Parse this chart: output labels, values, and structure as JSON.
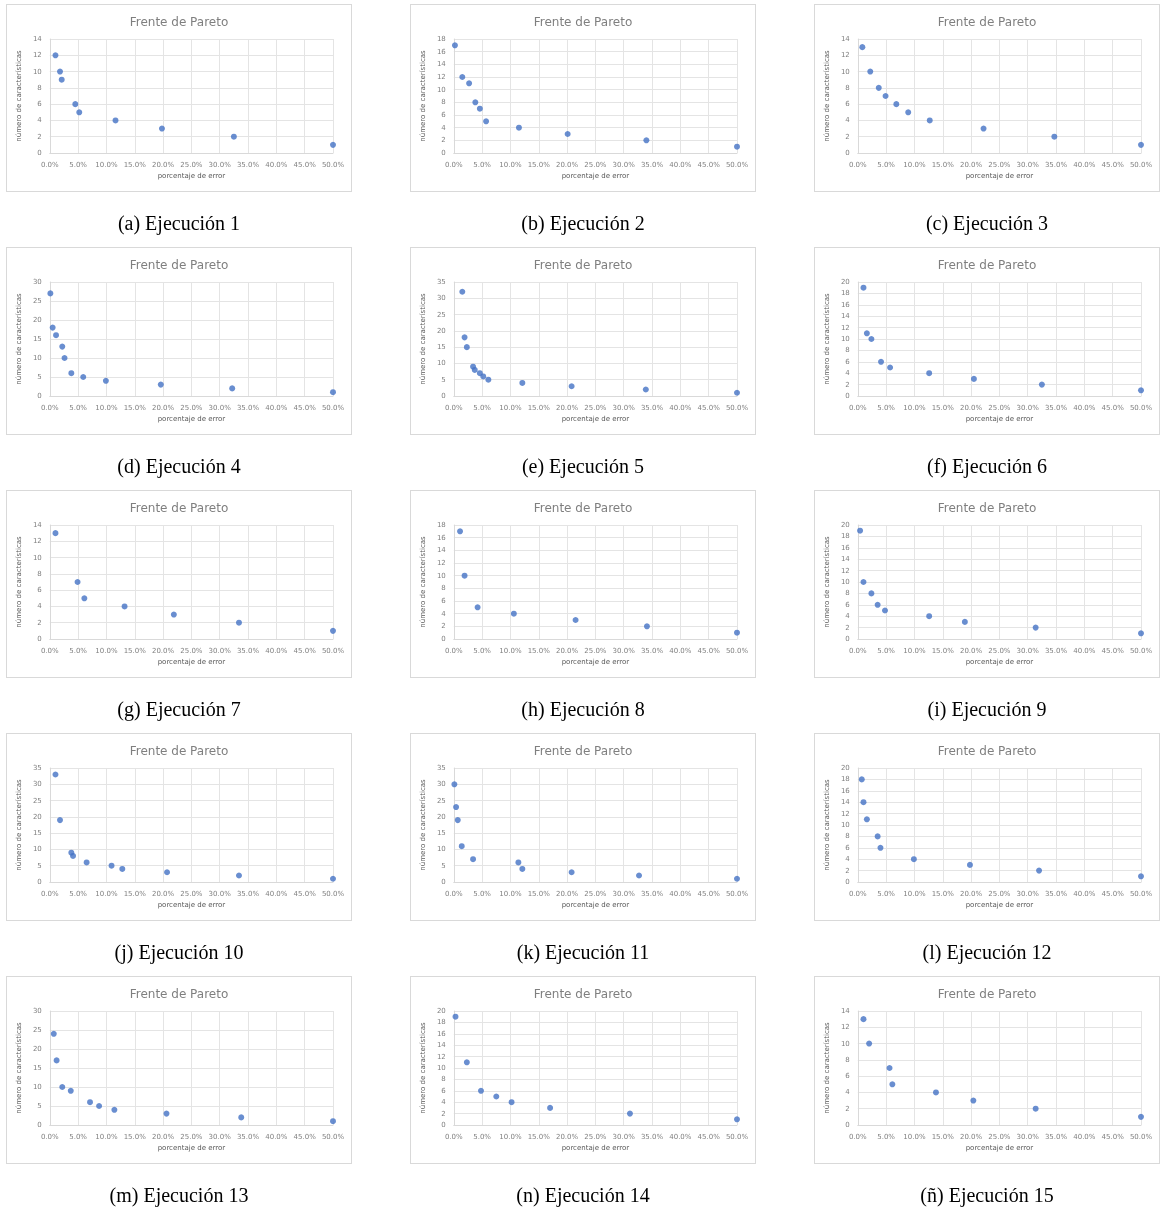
{
  "chart_data": [
    {
      "type": "scatter",
      "title": "Frente de Pareto",
      "xlabel": "porcentaje de error",
      "ylabel": "número de características",
      "annotations": [
        "(a) Ejecución 1"
      ],
      "marker": "circle",
      "grid": true,
      "x": [
        1.0,
        1.8,
        2.1,
        4.5,
        5.2,
        11.6,
        19.8,
        32.5,
        50
      ],
      "series": [
        {
          "color": "#4472c4",
          "values": [
            12,
            10,
            9,
            6,
            5,
            4,
            3,
            2,
            1
          ]
        }
      ],
      "xlim": [
        0,
        50
      ],
      "xticks": [
        {
          "value": 0,
          "label": "0.0%"
        },
        {
          "value": 5,
          "label": "5.0%"
        },
        {
          "value": 10,
          "label": "10.0%"
        },
        {
          "value": 15,
          "label": "15.0%"
        },
        {
          "value": 20,
          "label": "20.0%"
        },
        {
          "value": 25,
          "label": "25.0%"
        },
        {
          "value": 30,
          "label": "30.0%"
        },
        {
          "value": 35,
          "label": "35.0%"
        },
        {
          "value": 40,
          "label": "40.0%"
        },
        {
          "value": 45,
          "label": "45.0%"
        },
        {
          "value": 50,
          "label": "50.0%"
        }
      ],
      "ylim": [
        0,
        14
      ],
      "yticks": [
        0,
        2,
        4,
        6,
        8,
        10,
        12,
        14
      ]
    },
    {
      "type": "scatter",
      "title": "Frente de Pareto",
      "xlabel": "porcentaje de error",
      "ylabel": "número de características",
      "annotations": [
        "(b) Ejecución 2"
      ],
      "marker": "circle",
      "grid": true,
      "x": [
        0.2,
        1.5,
        2.7,
        3.8,
        4.6,
        5.7,
        11.5,
        20.1,
        34.0,
        50
      ],
      "series": [
        {
          "color": "#4472c4",
          "values": [
            17,
            12,
            11,
            8,
            7,
            5,
            4,
            3,
            2,
            1
          ]
        }
      ],
      "xlim": [
        0,
        50
      ],
      "xticks": [
        {
          "value": 0,
          "label": "0.0%"
        },
        {
          "value": 5,
          "label": "5.0%"
        },
        {
          "value": 10,
          "label": "10.0%"
        },
        {
          "value": 15,
          "label": "15.0%"
        },
        {
          "value": 20,
          "label": "20.0%"
        },
        {
          "value": 25,
          "label": "25.0%"
        },
        {
          "value": 30,
          "label": "30.0%"
        },
        {
          "value": 35,
          "label": "35.0%"
        },
        {
          "value": 40,
          "label": "40.0%"
        },
        {
          "value": 45,
          "label": "45.0%"
        },
        {
          "value": 50,
          "label": "50.0%"
        }
      ],
      "ylim": [
        0,
        18
      ],
      "yticks": [
        0,
        2,
        4,
        6,
        8,
        10,
        12,
        14,
        16,
        18
      ]
    },
    {
      "type": "scatter",
      "title": "Frente de Pareto",
      "xlabel": "porcentaje de error",
      "ylabel": "número de características",
      "annotations": [
        "(c) Ejecución 3"
      ],
      "marker": "circle",
      "grid": true,
      "x": [
        0.8,
        2.2,
        3.7,
        4.9,
        6.8,
        8.9,
        12.7,
        22.2,
        34.7,
        50
      ],
      "series": [
        {
          "color": "#4472c4",
          "values": [
            13,
            10,
            8,
            7,
            6,
            5,
            4,
            3,
            2,
            1
          ]
        }
      ],
      "xlim": [
        0,
        50
      ],
      "xticks": [
        {
          "value": 0,
          "label": "0.0%"
        },
        {
          "value": 5,
          "label": "5.0%"
        },
        {
          "value": 10,
          "label": "10.0%"
        },
        {
          "value": 15,
          "label": "15.0%"
        },
        {
          "value": 20,
          "label": "20.0%"
        },
        {
          "value": 25,
          "label": "25.0%"
        },
        {
          "value": 30,
          "label": "30.0%"
        },
        {
          "value": 35,
          "label": "35.0%"
        },
        {
          "value": 40,
          "label": "40.0%"
        },
        {
          "value": 45,
          "label": "45.0%"
        },
        {
          "value": 50,
          "label": "50.0%"
        }
      ],
      "ylim": [
        0,
        14
      ],
      "yticks": [
        0,
        2,
        4,
        6,
        8,
        10,
        12,
        14
      ]
    },
    {
      "type": "scatter",
      "title": "Frente de Pareto",
      "xlabel": "porcentaje de error",
      "ylabel": "número de características",
      "annotations": [
        "(d) Ejecución 4"
      ],
      "marker": "circle",
      "grid": true,
      "x": [
        0.1,
        0.5,
        1.1,
        2.2,
        2.6,
        3.8,
        5.9,
        9.9,
        19.6,
        32.2,
        50
      ],
      "series": [
        {
          "color": "#4472c4",
          "values": [
            27,
            18,
            16,
            13,
            10,
            6,
            5,
            4,
            3,
            2,
            1
          ]
        }
      ],
      "xlim": [
        0,
        50
      ],
      "xticks": [
        {
          "value": 0,
          "label": "0.0%"
        },
        {
          "value": 5,
          "label": "5.0%"
        },
        {
          "value": 10,
          "label": "10.0%"
        },
        {
          "value": 15,
          "label": "15.0%"
        },
        {
          "value": 20,
          "label": "20.0%"
        },
        {
          "value": 25,
          "label": "25.0%"
        },
        {
          "value": 30,
          "label": "30.0%"
        },
        {
          "value": 35,
          "label": "35.0%"
        },
        {
          "value": 40,
          "label": "40.0%"
        },
        {
          "value": 45,
          "label": "45.0%"
        },
        {
          "value": 50,
          "label": "50.0%"
        }
      ],
      "ylim": [
        0,
        30
      ],
      "yticks": [
        0,
        5,
        10,
        15,
        20,
        25,
        30
      ]
    },
    {
      "type": "scatter",
      "title": "Frente de Pareto",
      "xlabel": "porcentaje de error",
      "ylabel": "número de características",
      "annotations": [
        "(e) Ejecución 5"
      ],
      "marker": "circle",
      "grid": true,
      "x": [
        1.5,
        1.9,
        2.3,
        3.4,
        3.7,
        4.6,
        5.2,
        6.1,
        12.1,
        20.8,
        33.9,
        50
      ],
      "series": [
        {
          "color": "#4472c4",
          "values": [
            32,
            18,
            15,
            9,
            8,
            7,
            6,
            5,
            4,
            3,
            2,
            1
          ]
        }
      ],
      "xlim": [
        0,
        50
      ],
      "xticks": [
        {
          "value": 0,
          "label": "0.0%"
        },
        {
          "value": 5,
          "label": "5.0%"
        },
        {
          "value": 10,
          "label": "10.0%"
        },
        {
          "value": 15,
          "label": "15.0%"
        },
        {
          "value": 20,
          "label": "20.0%"
        },
        {
          "value": 25,
          "label": "25.0%"
        },
        {
          "value": 30,
          "label": "30.0%"
        },
        {
          "value": 35,
          "label": "35.0%"
        },
        {
          "value": 40,
          "label": "40.0%"
        },
        {
          "value": 45,
          "label": "45.0%"
        },
        {
          "value": 50,
          "label": "50.0%"
        }
      ],
      "ylim": [
        0,
        35
      ],
      "yticks": [
        0,
        5,
        10,
        15,
        20,
        25,
        30,
        35
      ]
    },
    {
      "type": "scatter",
      "title": "Frente de Pareto",
      "xlabel": "porcentaje de error",
      "ylabel": "número de características",
      "annotations": [
        "(f) Ejecución 6"
      ],
      "marker": "circle",
      "grid": true,
      "x": [
        1.0,
        1.6,
        2.4,
        4.1,
        5.7,
        12.6,
        20.5,
        32.5,
        50
      ],
      "series": [
        {
          "color": "#4472c4",
          "values": [
            19,
            11,
            10,
            6,
            5,
            4,
            3,
            2,
            1
          ]
        }
      ],
      "xlim": [
        0,
        50
      ],
      "xticks": [
        {
          "value": 0,
          "label": "0.0%"
        },
        {
          "value": 5,
          "label": "5.0%"
        },
        {
          "value": 10,
          "label": "10.0%"
        },
        {
          "value": 15,
          "label": "15.0%"
        },
        {
          "value": 20,
          "label": "20.0%"
        },
        {
          "value": 25,
          "label": "25.0%"
        },
        {
          "value": 30,
          "label": "30.0%"
        },
        {
          "value": 35,
          "label": "35.0%"
        },
        {
          "value": 40,
          "label": "40.0%"
        },
        {
          "value": 45,
          "label": "45.0%"
        },
        {
          "value": 50,
          "label": "50.0%"
        }
      ],
      "ylim": [
        0,
        20
      ],
      "yticks": [
        0,
        2,
        4,
        6,
        8,
        10,
        12,
        14,
        16,
        18,
        20
      ]
    },
    {
      "type": "scatter",
      "title": "Frente de Pareto",
      "xlabel": "porcentaje de error",
      "ylabel": "número de características",
      "annotations": [
        "(g) Ejecución 7"
      ],
      "marker": "circle",
      "grid": true,
      "x": [
        1.0,
        4.9,
        6.1,
        13.2,
        21.9,
        33.4,
        50
      ],
      "series": [
        {
          "color": "#4472c4",
          "values": [
            13,
            7,
            5,
            4,
            3,
            2,
            1
          ]
        }
      ],
      "xlim": [
        0,
        50
      ],
      "xticks": [
        {
          "value": 0,
          "label": "0.0%"
        },
        {
          "value": 5,
          "label": "5.0%"
        },
        {
          "value": 10,
          "label": "10.0%"
        },
        {
          "value": 15,
          "label": "15.0%"
        },
        {
          "value": 20,
          "label": "20.0%"
        },
        {
          "value": 25,
          "label": "25.0%"
        },
        {
          "value": 30,
          "label": "30.0%"
        },
        {
          "value": 35,
          "label": "35.0%"
        },
        {
          "value": 40,
          "label": "40.0%"
        },
        {
          "value": 45,
          "label": "45.0%"
        },
        {
          "value": 50,
          "label": "50.0%"
        }
      ],
      "ylim": [
        0,
        14
      ],
      "yticks": [
        0,
        2,
        4,
        6,
        8,
        10,
        12,
        14
      ]
    },
    {
      "type": "scatter",
      "title": "Frente de Pareto",
      "xlabel": "porcentaje de error",
      "ylabel": "número de características",
      "annotations": [
        "(h) Ejecución 8"
      ],
      "marker": "circle",
      "grid": true,
      "x": [
        1.1,
        1.9,
        4.2,
        10.6,
        21.5,
        34.1,
        50
      ],
      "series": [
        {
          "color": "#4472c4",
          "values": [
            17,
            10,
            5,
            4,
            3,
            2,
            1
          ]
        }
      ],
      "xlim": [
        0,
        50
      ],
      "xticks": [
        {
          "value": 0,
          "label": "0.0%"
        },
        {
          "value": 5,
          "label": "5.0%"
        },
        {
          "value": 10,
          "label": "10.0%"
        },
        {
          "value": 15,
          "label": "15.0%"
        },
        {
          "value": 20,
          "label": "20.0%"
        },
        {
          "value": 25,
          "label": "25.0%"
        },
        {
          "value": 30,
          "label": "30.0%"
        },
        {
          "value": 35,
          "label": "35.0%"
        },
        {
          "value": 40,
          "label": "40.0%"
        },
        {
          "value": 45,
          "label": "45.0%"
        },
        {
          "value": 50,
          "label": "50.0%"
        }
      ],
      "ylim": [
        0,
        18
      ],
      "yticks": [
        0,
        2,
        4,
        6,
        8,
        10,
        12,
        14,
        16,
        18
      ]
    },
    {
      "type": "scatter",
      "title": "Frente de Pareto",
      "xlabel": "porcentaje de error",
      "ylabel": "número de características",
      "annotations": [
        "(i) Ejecución 9"
      ],
      "marker": "circle",
      "grid": true,
      "x": [
        0.4,
        1.0,
        2.4,
        3.5,
        4.8,
        12.6,
        18.9,
        31.4,
        50
      ],
      "series": [
        {
          "color": "#4472c4",
          "values": [
            19,
            10,
            8,
            6,
            5,
            4,
            3,
            2,
            1
          ]
        }
      ],
      "xlim": [
        0,
        50
      ],
      "xticks": [
        {
          "value": 0,
          "label": "0.0%"
        },
        {
          "value": 5,
          "label": "5.0%"
        },
        {
          "value": 10,
          "label": "10.0%"
        },
        {
          "value": 15,
          "label": "15.0%"
        },
        {
          "value": 20,
          "label": "20.0%"
        },
        {
          "value": 25,
          "label": "25.0%"
        },
        {
          "value": 30,
          "label": "30.0%"
        },
        {
          "value": 35,
          "label": "35.0%"
        },
        {
          "value": 40,
          "label": "40.0%"
        },
        {
          "value": 45,
          "label": "45.0%"
        },
        {
          "value": 50,
          "label": "50.0%"
        }
      ],
      "ylim": [
        0,
        20
      ],
      "yticks": [
        0,
        2,
        4,
        6,
        8,
        10,
        12,
        14,
        16,
        18,
        20
      ]
    },
    {
      "type": "scatter",
      "title": "Frente de Pareto",
      "xlabel": "porcentaje de error",
      "ylabel": "número de características",
      "annotations": [
        "(j) Ejecución 10"
      ],
      "marker": "circle",
      "grid": true,
      "x": [
        1.0,
        1.8,
        3.8,
        4.1,
        6.5,
        10.9,
        12.8,
        20.7,
        33.4,
        50
      ],
      "series": [
        {
          "color": "#4472c4",
          "values": [
            33,
            19,
            9,
            8,
            6,
            5,
            4,
            3,
            2,
            1
          ]
        }
      ],
      "xlim": [
        0,
        50
      ],
      "xticks": [
        {
          "value": 0,
          "label": "0.0%"
        },
        {
          "value": 5,
          "label": "5.0%"
        },
        {
          "value": 10,
          "label": "10.0%"
        },
        {
          "value": 15,
          "label": "15.0%"
        },
        {
          "value": 20,
          "label": "20.0%"
        },
        {
          "value": 25,
          "label": "25.0%"
        },
        {
          "value": 30,
          "label": "30.0%"
        },
        {
          "value": 35,
          "label": "35.0%"
        },
        {
          "value": 40,
          "label": "40.0%"
        },
        {
          "value": 45,
          "label": "45.0%"
        },
        {
          "value": 50,
          "label": "50.0%"
        }
      ],
      "ylim": [
        0,
        35
      ],
      "yticks": [
        0,
        5,
        10,
        15,
        20,
        25,
        30,
        35
      ]
    },
    {
      "type": "scatter",
      "title": "Frente de Pareto",
      "xlabel": "porcentaje de error",
      "ylabel": "número de características",
      "annotations": [
        "(k) Ejecución 11"
      ],
      "marker": "circle",
      "grid": true,
      "x": [
        0.1,
        0.4,
        0.7,
        1.4,
        3.4,
        11.4,
        12.1,
        20.8,
        32.7,
        50
      ],
      "series": [
        {
          "color": "#4472c4",
          "values": [
            30,
            23,
            19,
            11,
            7,
            6,
            4,
            3,
            2,
            1
          ]
        }
      ],
      "xlim": [
        0,
        50
      ],
      "xticks": [
        {
          "value": 0,
          "label": "0.0%"
        },
        {
          "value": 5,
          "label": "5.0%"
        },
        {
          "value": 10,
          "label": "10.0%"
        },
        {
          "value": 15,
          "label": "15.0%"
        },
        {
          "value": 20,
          "label": "20.0%"
        },
        {
          "value": 25,
          "label": "25.0%"
        },
        {
          "value": 30,
          "label": "30.0%"
        },
        {
          "value": 35,
          "label": "35.0%"
        },
        {
          "value": 40,
          "label": "40.0%"
        },
        {
          "value": 45,
          "label": "45.0%"
        },
        {
          "value": 50,
          "label": "50.0%"
        }
      ],
      "ylim": [
        0,
        35
      ],
      "yticks": [
        0,
        5,
        10,
        15,
        20,
        25,
        30,
        35
      ]
    },
    {
      "type": "scatter",
      "title": "Frente de Pareto",
      "xlabel": "porcentaje de error",
      "ylabel": "número de características",
      "annotations": [
        "(l) Ejecución 12"
      ],
      "marker": "circle",
      "grid": true,
      "x": [
        0.7,
        1.0,
        1.6,
        3.5,
        4.0,
        9.9,
        19.8,
        32.0,
        50
      ],
      "series": [
        {
          "color": "#4472c4",
          "values": [
            18,
            14,
            11,
            8,
            6,
            4,
            3,
            2,
            1
          ]
        }
      ],
      "xlim": [
        0,
        50
      ],
      "xticks": [
        {
          "value": 0,
          "label": "0.0%"
        },
        {
          "value": 5,
          "label": "5.0%"
        },
        {
          "value": 10,
          "label": "10.0%"
        },
        {
          "value": 15,
          "label": "15.0%"
        },
        {
          "value": 20,
          "label": "20.0%"
        },
        {
          "value": 25,
          "label": "25.0%"
        },
        {
          "value": 30,
          "label": "30.0%"
        },
        {
          "value": 35,
          "label": "35.0%"
        },
        {
          "value": 40,
          "label": "40.0%"
        },
        {
          "value": 45,
          "label": "45.0%"
        },
        {
          "value": 50,
          "label": "50.0%"
        }
      ],
      "ylim": [
        0,
        20
      ],
      "yticks": [
        0,
        2,
        4,
        6,
        8,
        10,
        12,
        14,
        16,
        18,
        20
      ]
    },
    {
      "type": "scatter",
      "title": "Frente de Pareto",
      "xlabel": "porcentaje de error",
      "ylabel": "número de características",
      "annotations": [
        "(m) Ejecución 13"
      ],
      "marker": "circle",
      "grid": true,
      "x": [
        0.7,
        1.2,
        2.2,
        3.7,
        7.1,
        8.7,
        11.4,
        20.6,
        33.8,
        50
      ],
      "series": [
        {
          "color": "#4472c4",
          "values": [
            24,
            17,
            10,
            9,
            6,
            5,
            4,
            3,
            2,
            1
          ]
        }
      ],
      "xlim": [
        0,
        50
      ],
      "xticks": [
        {
          "value": 0,
          "label": "0.0%"
        },
        {
          "value": 5,
          "label": "5.0%"
        },
        {
          "value": 10,
          "label": "10.0%"
        },
        {
          "value": 15,
          "label": "15.0%"
        },
        {
          "value": 20,
          "label": "20.0%"
        },
        {
          "value": 25,
          "label": "25.0%"
        },
        {
          "value": 30,
          "label": "30.0%"
        },
        {
          "value": 35,
          "label": "35.0%"
        },
        {
          "value": 40,
          "label": "40.0%"
        },
        {
          "value": 45,
          "label": "45.0%"
        },
        {
          "value": 50,
          "label": "50.0%"
        }
      ],
      "ylim": [
        0,
        30
      ],
      "yticks": [
        0,
        5,
        10,
        15,
        20,
        25,
        30
      ]
    },
    {
      "type": "scatter",
      "title": "Frente de Pareto",
      "xlabel": "porcentaje de error",
      "ylabel": "número de características",
      "annotations": [
        "(n) Ejecución 14"
      ],
      "marker": "circle",
      "grid": true,
      "x": [
        0.3,
        2.3,
        4.8,
        7.5,
        10.2,
        17.0,
        31.1,
        50
      ],
      "series": [
        {
          "color": "#4472c4",
          "values": [
            19,
            11,
            6,
            5,
            4,
            3,
            2,
            1
          ]
        }
      ],
      "xlim": [
        0,
        50
      ],
      "xticks": [
        {
          "value": 0,
          "label": "0.0%"
        },
        {
          "value": 5,
          "label": "5.0%"
        },
        {
          "value": 10,
          "label": "10.0%"
        },
        {
          "value": 15,
          "label": "15.0%"
        },
        {
          "value": 20,
          "label": "20.0%"
        },
        {
          "value": 25,
          "label": "25.0%"
        },
        {
          "value": 30,
          "label": "30.0%"
        },
        {
          "value": 35,
          "label": "35.0%"
        },
        {
          "value": 40,
          "label": "40.0%"
        },
        {
          "value": 45,
          "label": "45.0%"
        },
        {
          "value": 50,
          "label": "50.0%"
        }
      ],
      "ylim": [
        0,
        20
      ],
      "yticks": [
        0,
        2,
        4,
        6,
        8,
        10,
        12,
        14,
        16,
        18,
        20
      ]
    },
    {
      "type": "scatter",
      "title": "Frente de Pareto",
      "xlabel": "porcentaje de error",
      "ylabel": "número de características",
      "annotations": [
        "(ñ) Ejecución 15"
      ],
      "marker": "circle",
      "grid": true,
      "x": [
        1.0,
        2.0,
        5.6,
        6.1,
        13.8,
        20.4,
        31.4,
        50
      ],
      "series": [
        {
          "color": "#4472c4",
          "values": [
            13,
            10,
            7,
            5,
            4,
            3,
            2,
            1
          ]
        }
      ],
      "xlim": [
        0,
        50
      ],
      "xticks": [
        {
          "value": 0,
          "label": "0.0%"
        },
        {
          "value": 5,
          "label": "5.0%"
        },
        {
          "value": 10,
          "label": "10.0%"
        },
        {
          "value": 15,
          "label": "15.0%"
        },
        {
          "value": 20,
          "label": "20.0%"
        },
        {
          "value": 25,
          "label": "25.0%"
        },
        {
          "value": 30,
          "label": "30.0%"
        },
        {
          "value": 35,
          "label": "35.0%"
        },
        {
          "value": 40,
          "label": "40.0%"
        },
        {
          "value": 45,
          "label": "45.0%"
        },
        {
          "value": 50,
          "label": "50.0%"
        }
      ],
      "ylim": [
        0,
        14
      ],
      "yticks": [
        0,
        2,
        4,
        6,
        8,
        10,
        12,
        14
      ]
    }
  ]
}
